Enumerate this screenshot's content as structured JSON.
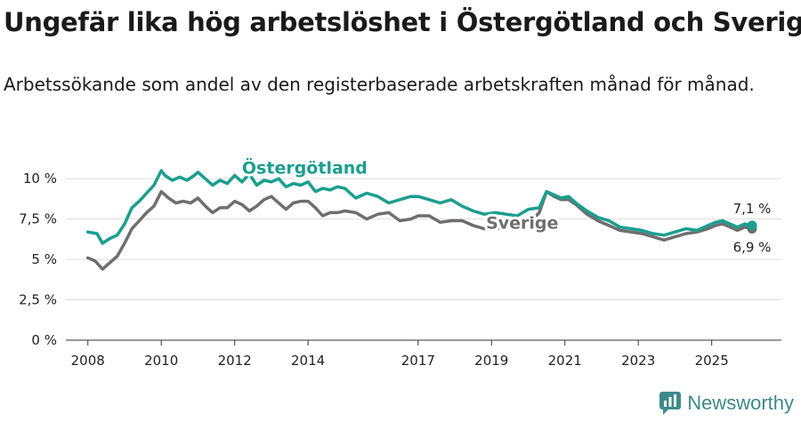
{
  "title": "Ungefär lika hög arbetslöshet i Östergötland och Sverige",
  "subtitle": "Arbetssökande som andel av den registerbaserade arbetskraften månad för månad.",
  "brand": "Newsworthy",
  "colors": {
    "ostergotland": "#1a9e8f",
    "sverige": "#6e6e6e",
    "grid": "#dddddd",
    "axis": "#333333"
  },
  "chart_data": {
    "type": "line",
    "title": "Ungefär lika hög arbetslöshet i Östergötland och Sverige",
    "ylabel": "",
    "xlabel": "",
    "ylim": [
      0,
      11
    ],
    "xlim": [
      2007.4,
      2026.9
    ],
    "y_ticks": [
      0,
      2.5,
      5,
      7.5,
      10
    ],
    "y_tick_labels": [
      "0 %",
      "2,5 %",
      "5 %",
      "7,5 %",
      "10 %"
    ],
    "x_ticks": [
      2008,
      2010,
      2012,
      2014,
      2017,
      2019,
      2021,
      2023,
      2025
    ],
    "x_tick_labels": [
      "2008",
      "2010",
      "2012",
      "2014",
      "2017",
      "2019",
      "2021",
      "2023",
      "2025"
    ],
    "grid": true,
    "series": [
      {
        "name": "Östergötland",
        "color": "#1a9e8f",
        "end_label": "7,1 %",
        "x": [
          2008.0,
          2008.25,
          2008.4,
          2008.6,
          2008.8,
          2009.0,
          2009.2,
          2009.4,
          2009.6,
          2009.8,
          2010.0,
          2010.1,
          2010.3,
          2010.5,
          2010.7,
          2010.9,
          2011.0,
          2011.2,
          2011.4,
          2011.6,
          2011.8,
          2012.0,
          2012.2,
          2012.4,
          2012.6,
          2012.8,
          2013.0,
          2013.2,
          2013.4,
          2013.6,
          2013.8,
          2014.0,
          2014.2,
          2014.4,
          2014.6,
          2014.8,
          2015.0,
          2015.3,
          2015.6,
          2015.9,
          2016.2,
          2016.5,
          2016.8,
          2017.0,
          2017.3,
          2017.6,
          2017.9,
          2018.2,
          2018.5,
          2018.8,
          2019.1,
          2019.4,
          2019.7,
          2020.0,
          2020.3,
          2020.5,
          2020.7,
          2020.9,
          2021.1,
          2021.3,
          2021.6,
          2021.9,
          2022.2,
          2022.5,
          2022.8,
          2023.1,
          2023.4,
          2023.7,
          2024.0,
          2024.3,
          2024.6,
          2024.9,
          2025.1,
          2025.3,
          2025.5,
          2025.7,
          2025.9,
          2026.1
        ],
        "values": [
          6.7,
          6.6,
          6.0,
          6.3,
          6.5,
          7.2,
          8.2,
          8.6,
          9.1,
          9.6,
          10.5,
          10.2,
          9.9,
          10.1,
          9.9,
          10.2,
          10.4,
          10.0,
          9.6,
          9.9,
          9.7,
          10.2,
          9.8,
          10.3,
          9.6,
          9.9,
          9.8,
          10.0,
          9.5,
          9.7,
          9.6,
          9.8,
          9.2,
          9.4,
          9.3,
          9.5,
          9.4,
          8.8,
          9.1,
          8.9,
          8.5,
          8.7,
          8.9,
          8.9,
          8.7,
          8.5,
          8.7,
          8.3,
          8.0,
          7.8,
          7.9,
          7.8,
          7.7,
          8.1,
          8.2,
          9.2,
          9.0,
          8.8,
          8.9,
          8.5,
          8.0,
          7.6,
          7.4,
          7.0,
          6.9,
          6.8,
          6.6,
          6.5,
          6.7,
          6.9,
          6.8,
          7.1,
          7.3,
          7.4,
          7.2,
          7.0,
          7.2,
          7.1
        ]
      },
      {
        "name": "Sverige",
        "color": "#6e6e6e",
        "end_label": "6,9 %",
        "x": [
          2008.0,
          2008.2,
          2008.4,
          2008.6,
          2008.8,
          2009.0,
          2009.2,
          2009.4,
          2009.6,
          2009.8,
          2010.0,
          2010.2,
          2010.4,
          2010.6,
          2010.8,
          2011.0,
          2011.2,
          2011.4,
          2011.6,
          2011.8,
          2012.0,
          2012.2,
          2012.4,
          2012.6,
          2012.8,
          2013.0,
          2013.2,
          2013.4,
          2013.6,
          2013.8,
          2014.0,
          2014.2,
          2014.4,
          2014.6,
          2014.8,
          2015.0,
          2015.3,
          2015.6,
          2015.9,
          2016.2,
          2016.5,
          2016.8,
          2017.0,
          2017.3,
          2017.6,
          2017.9,
          2018.2,
          2018.5,
          2018.8,
          2019.1,
          2019.4,
          2019.7,
          2020.0,
          2020.3,
          2020.5,
          2020.7,
          2020.9,
          2021.1,
          2021.3,
          2021.6,
          2021.9,
          2022.2,
          2022.5,
          2022.8,
          2023.1,
          2023.4,
          2023.7,
          2024.0,
          2024.3,
          2024.6,
          2024.9,
          2025.1,
          2025.3,
          2025.5,
          2025.7,
          2025.9,
          2026.1
        ],
        "values": [
          5.1,
          4.9,
          4.4,
          4.8,
          5.2,
          6.0,
          6.9,
          7.4,
          7.9,
          8.3,
          9.2,
          8.8,
          8.5,
          8.6,
          8.5,
          8.8,
          8.3,
          7.9,
          8.2,
          8.2,
          8.6,
          8.4,
          8.0,
          8.3,
          8.7,
          8.9,
          8.5,
          8.1,
          8.5,
          8.6,
          8.6,
          8.2,
          7.7,
          7.9,
          7.9,
          8.0,
          7.9,
          7.5,
          7.8,
          7.9,
          7.4,
          7.5,
          7.7,
          7.7,
          7.3,
          7.4,
          7.4,
          7.1,
          6.9,
          6.9,
          7.0,
          7.0,
          7.2,
          7.9,
          9.2,
          8.9,
          8.7,
          8.7,
          8.4,
          7.8,
          7.4,
          7.1,
          6.8,
          6.7,
          6.6,
          6.4,
          6.2,
          6.4,
          6.6,
          6.7,
          6.9,
          7.1,
          7.2,
          7.0,
          6.8,
          7.0,
          6.9
        ]
      }
    ],
    "annotations": [
      "Östergötland",
      "Sverige"
    ]
  }
}
